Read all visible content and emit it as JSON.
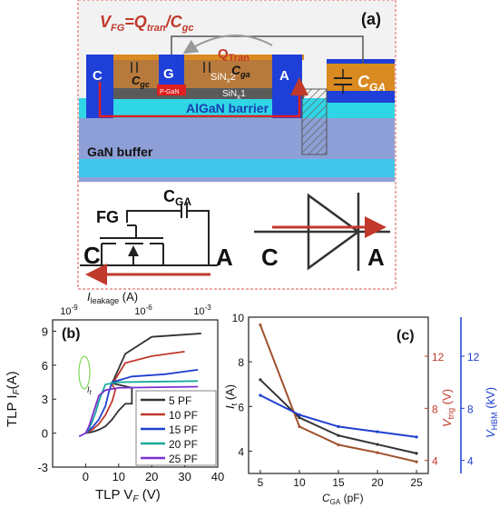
{
  "panel_a": {
    "label": "(a)",
    "formula": "V",
    "formula_sub": "FG",
    "formula_eq": "=Q",
    "formula_sub2": "tran",
    "formula_div": "/C",
    "formula_sub3": "gc",
    "qtran": "Q",
    "qtran_sub": "Tran",
    "terminal_c": "C",
    "terminal_g": "G",
    "terminal_a": "A",
    "cgc": "C",
    "cgc_sub": "gc",
    "cga": "C",
    "cga_sub": "ga",
    "sinx2": "SiN",
    "sinx2_sub": "x",
    "sinx2_num": "2",
    "sinx1": "SiN",
    "sinx1_sub": "x",
    "sinx1_num": "1",
    "pgan": "P-GaN",
    "barrier": "AlGaN barrier",
    "buffer": "GaN buffer",
    "cga_big": "C",
    "cga_big_sub": "GA"
  },
  "circuit": {
    "fg": "FG",
    "c": "C",
    "a": "A",
    "cga": "C",
    "cga_sub": "GA",
    "diode_c": "C",
    "diode_a": "A"
  },
  "panel_b": {
    "label": "(b)",
    "top_axis_title": "I",
    "top_axis_sub": "leakage",
    "top_axis_unit": " (A)",
    "top_ticks": [
      "10",
      "10",
      "10"
    ],
    "top_tick_exp": [
      "-9",
      "-6",
      "-3"
    ],
    "ylabel": "TLP I",
    "ylabel_sub": "F",
    "ylabel_unit": "(A)",
    "xlabel": "TLP V",
    "xlabel_sub": "F",
    "xlabel_unit": " (V)",
    "x_ticks": [
      "0",
      "10",
      "20",
      "30",
      "40"
    ],
    "y_ticks": [
      "-3",
      "0",
      "3",
      "6",
      "9"
    ],
    "legend": [
      "5 PF",
      "10 PF",
      "15 PF",
      "20 PF",
      "25 PF"
    ],
    "colors": [
      "#333333",
      "#c0392b",
      "#1f3fd0",
      "#1aa99a",
      "#7a2fd0"
    ],
    "it_label": "I",
    "it_sub": "t"
  },
  "panel_c": {
    "label": "(c)",
    "xlabel": "C",
    "xlabel_sub": "GA",
    "xlabel_unit": " (pF)",
    "ylabel_left": "I",
    "ylabel_left_sub": "t",
    "ylabel_left_unit": " (A)",
    "ylabel_mid": "V",
    "ylabel_mid_sub": "trig",
    "ylabel_mid_unit": " (V)",
    "ylabel_right": "V",
    "ylabel_right_sub": "HBM",
    "ylabel_right_unit": " (kV)",
    "x_ticks": [
      "5",
      "10",
      "15",
      "20",
      "25"
    ],
    "left_ticks": [
      "4",
      "6",
      "8",
      "10"
    ],
    "mid_ticks": [
      "4",
      "8",
      "12"
    ],
    "right_ticks": [
      "4",
      "8",
      "12"
    ]
  },
  "chart_data": [
    {
      "type": "line",
      "title": "",
      "xlabel": "TLP VF (V)",
      "ylabel": "TLP IF (A)",
      "xlim": [
        -10,
        40
      ],
      "ylim": [
        -3,
        10
      ],
      "series": [
        {
          "name": "5 PF",
          "x": [
            0,
            2,
            4,
            6,
            8,
            10,
            12,
            14,
            14,
            8,
            12,
            20,
            35
          ],
          "y": [
            0,
            0.1,
            0.3,
            0.6,
            1.2,
            2.0,
            2.6,
            2.6,
            4.0,
            4.4,
            7.0,
            8.5,
            8.8
          ]
        },
        {
          "name": "10 PF",
          "x": [
            0,
            2,
            4,
            6,
            8,
            9,
            8,
            12,
            20,
            30
          ],
          "y": [
            0,
            0.3,
            0.8,
            1.6,
            2.8,
            3.8,
            4.3,
            6.2,
            6.8,
            7.2
          ]
        },
        {
          "name": "15 PF",
          "x": [
            0,
            2,
            4,
            6,
            7,
            8,
            14,
            24,
            34
          ],
          "y": [
            0,
            0.5,
            1.2,
            2.4,
            3.6,
            4.5,
            5.0,
            5.2,
            5.6
          ]
        },
        {
          "name": "20 PF",
          "x": [
            0,
            1,
            2,
            3,
            4,
            5,
            6,
            10,
            34
          ],
          "y": [
            0,
            0.4,
            1.0,
            1.8,
            2.8,
            3.6,
            4.3,
            4.5,
            4.6
          ]
        },
        {
          "name": "25 PF",
          "x": [
            -2,
            0,
            1,
            2,
            3,
            4,
            6,
            10,
            34
          ],
          "y": [
            -0.3,
            0,
            0.6,
            1.5,
            2.4,
            3.3,
            3.8,
            4.0,
            4.1
          ]
        }
      ]
    },
    {
      "type": "line",
      "title": "",
      "xlabel": "CGA (pF)",
      "ylabel": "It (A)",
      "x": [
        5,
        10,
        15,
        20,
        25
      ],
      "xlim": [
        3.5,
        26.5
      ],
      "ylim": [
        3,
        10
      ],
      "series": [
        {
          "name": "It",
          "axis": "left",
          "values": [
            7.2,
            5.5,
            4.7,
            4.3,
            3.9
          ]
        },
        {
          "name": "Vtrig",
          "axis": "mid",
          "values": [
            14.4,
            6.6,
            5.2,
            4.6,
            3.9
          ]
        },
        {
          "name": "VHBM",
          "axis": "right",
          "values": [
            9.0,
            7.5,
            6.6,
            6.2,
            5.8
          ]
        }
      ]
    }
  ]
}
